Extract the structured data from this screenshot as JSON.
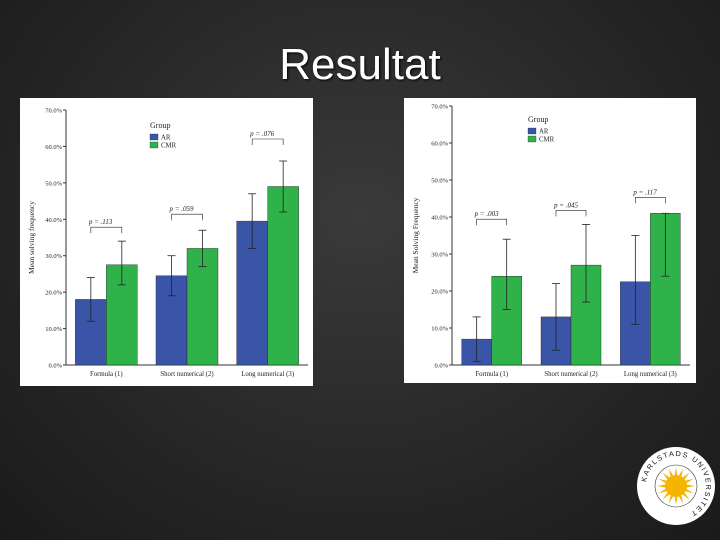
{
  "slide": {
    "title": "Resultat"
  },
  "chart_data": [
    {
      "type": "bar",
      "ylabel": "Mean solving frequency",
      "ylim": [
        0,
        70
      ],
      "yticks": [
        "0.0%",
        "10.0%",
        "20.0%",
        "30.0%",
        "40.0%",
        "50.0%",
        "60.0%",
        "70.0%"
      ],
      "categories": [
        "Formula (1)",
        "Short numerical (2)",
        "Long numerical (3)"
      ],
      "legend": {
        "title": "Group",
        "position": "top-left"
      },
      "series": [
        {
          "name": "AR",
          "color": "#3a55a8",
          "values": [
            18,
            24.5,
            39.5
          ],
          "err_low": [
            12,
            19,
            32
          ],
          "err_high": [
            24,
            30,
            47
          ]
        },
        {
          "name": "CMR",
          "color": "#2fb24a",
          "values": [
            27.5,
            32,
            49
          ],
          "err_low": [
            22,
            27,
            42
          ],
          "err_high": [
            34,
            37,
            56
          ]
        }
      ],
      "annotations": [
        "p = .113",
        "p = .059",
        "p = .076"
      ],
      "grid": false
    },
    {
      "type": "bar",
      "ylabel": "Mean Solving Frequency",
      "ylim": [
        0,
        70
      ],
      "yticks": [
        "0.0%",
        "10.0%",
        "20.0%",
        "30.0%",
        "40.0%",
        "50.0%",
        "60.0%",
        "70.0%"
      ],
      "categories": [
        "Formula (1)",
        "Short numerical (2)",
        "Long numerical (3)"
      ],
      "legend": {
        "title": "Group",
        "position": "top-left"
      },
      "series": [
        {
          "name": "AR",
          "color": "#3a55a8",
          "values": [
            7,
            13,
            22.5
          ],
          "err_low": [
            1,
            4,
            11
          ],
          "err_high": [
            13,
            22,
            35
          ]
        },
        {
          "name": "CMR",
          "color": "#2fb24a",
          "values": [
            24,
            27,
            41
          ],
          "err_low": [
            15,
            17,
            24
          ],
          "err_high": [
            34,
            38,
            41
          ]
        }
      ],
      "annotations": [
        "p = .003",
        "p = .045",
        "p = .117"
      ],
      "grid": false
    }
  ],
  "logo": {
    "text": "KARLSTADS UNIVERSITET"
  }
}
